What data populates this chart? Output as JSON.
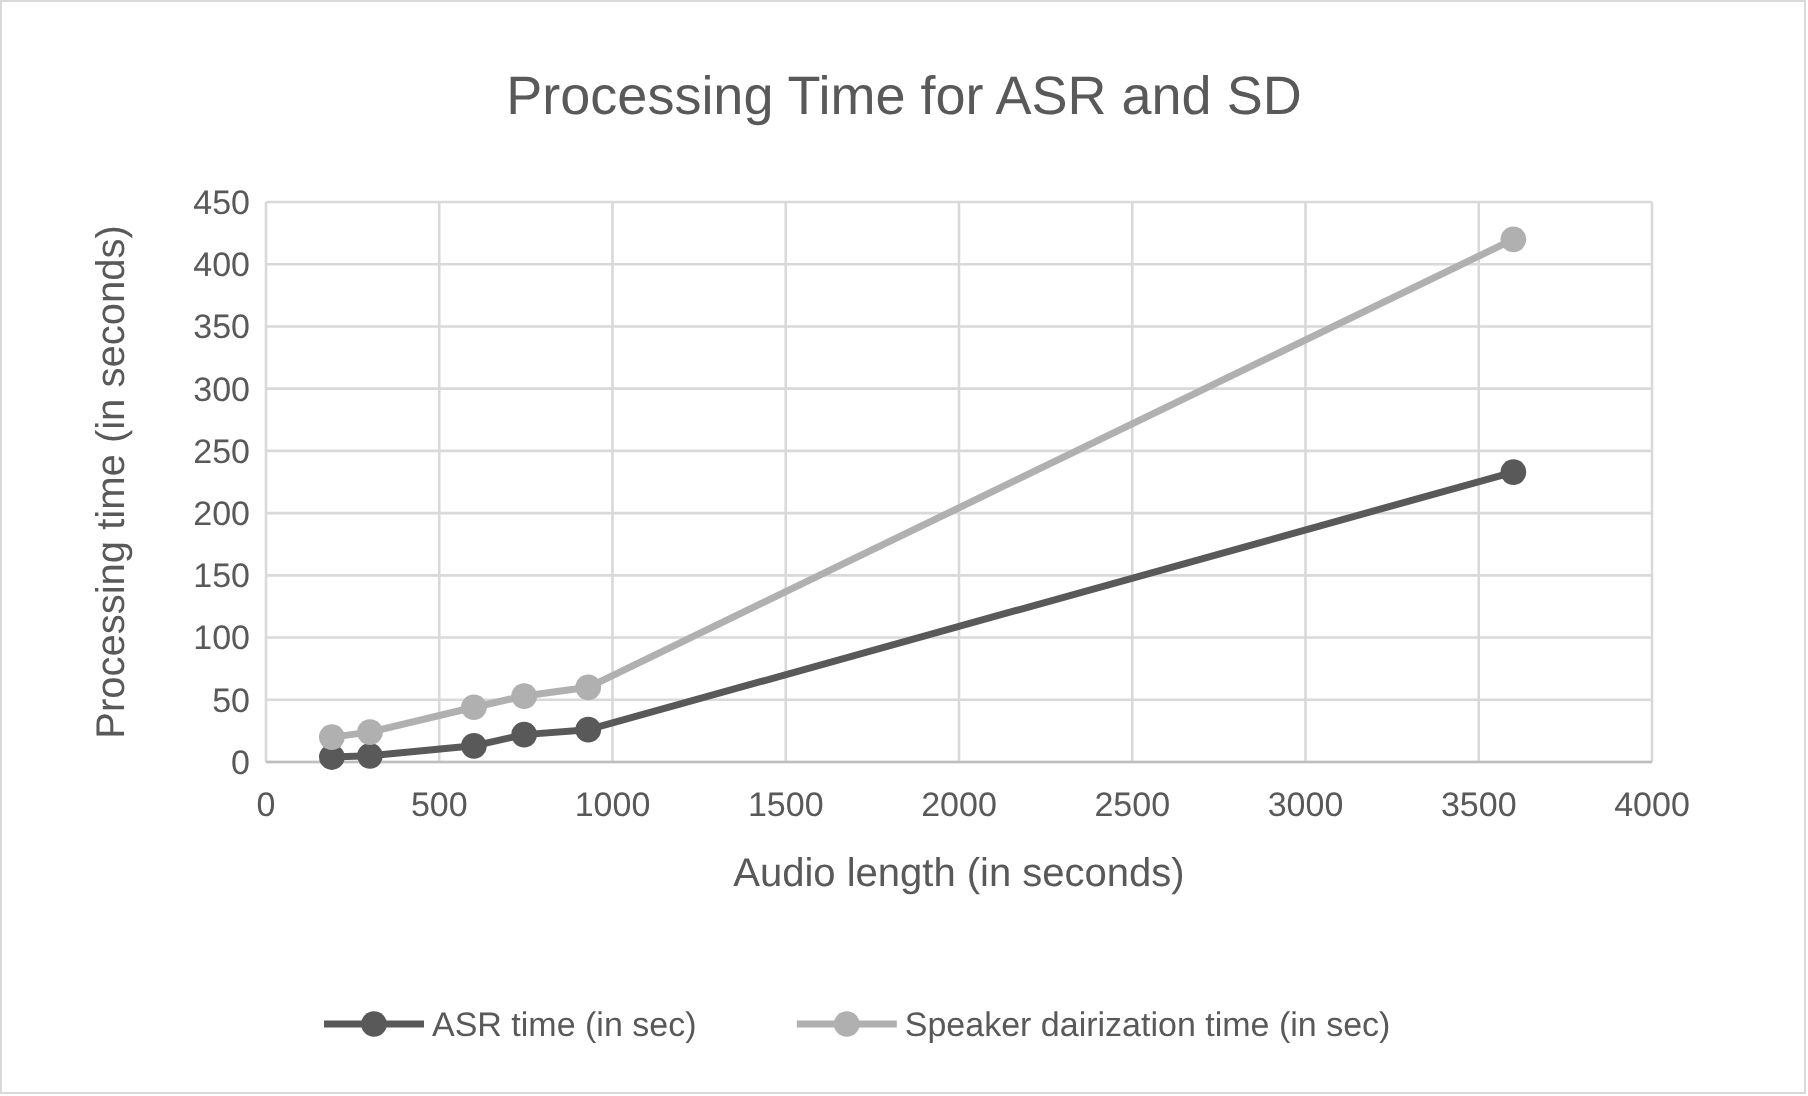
{
  "chart_data": {
    "type": "line",
    "title": "Processing Time for ASR and SD",
    "xlabel": "Audio length (in seconds)",
    "ylabel": "Processing time (in seconds)",
    "x": [
      190,
      300,
      600,
      745,
      930,
      3600
    ],
    "series": [
      {
        "name": "ASR time (in sec)",
        "color": "#595959",
        "values": [
          4,
          5,
          13,
          22,
          26,
          233
        ]
      },
      {
        "name": "Speaker dairization time (in sec)",
        "color": "#b0b0b0",
        "values": [
          20,
          24,
          44,
          53,
          60,
          420
        ]
      }
    ],
    "xlim": [
      0,
      4000
    ],
    "xticks": [
      0,
      500,
      1000,
      1500,
      2000,
      2500,
      3000,
      3500,
      4000
    ],
    "ylim": [
      0,
      450
    ],
    "yticks": [
      0,
      50,
      100,
      150,
      200,
      250,
      300,
      350,
      400,
      450
    ],
    "grid": true,
    "legend": "bottom",
    "marker": "circle",
    "line_style": "solid"
  }
}
